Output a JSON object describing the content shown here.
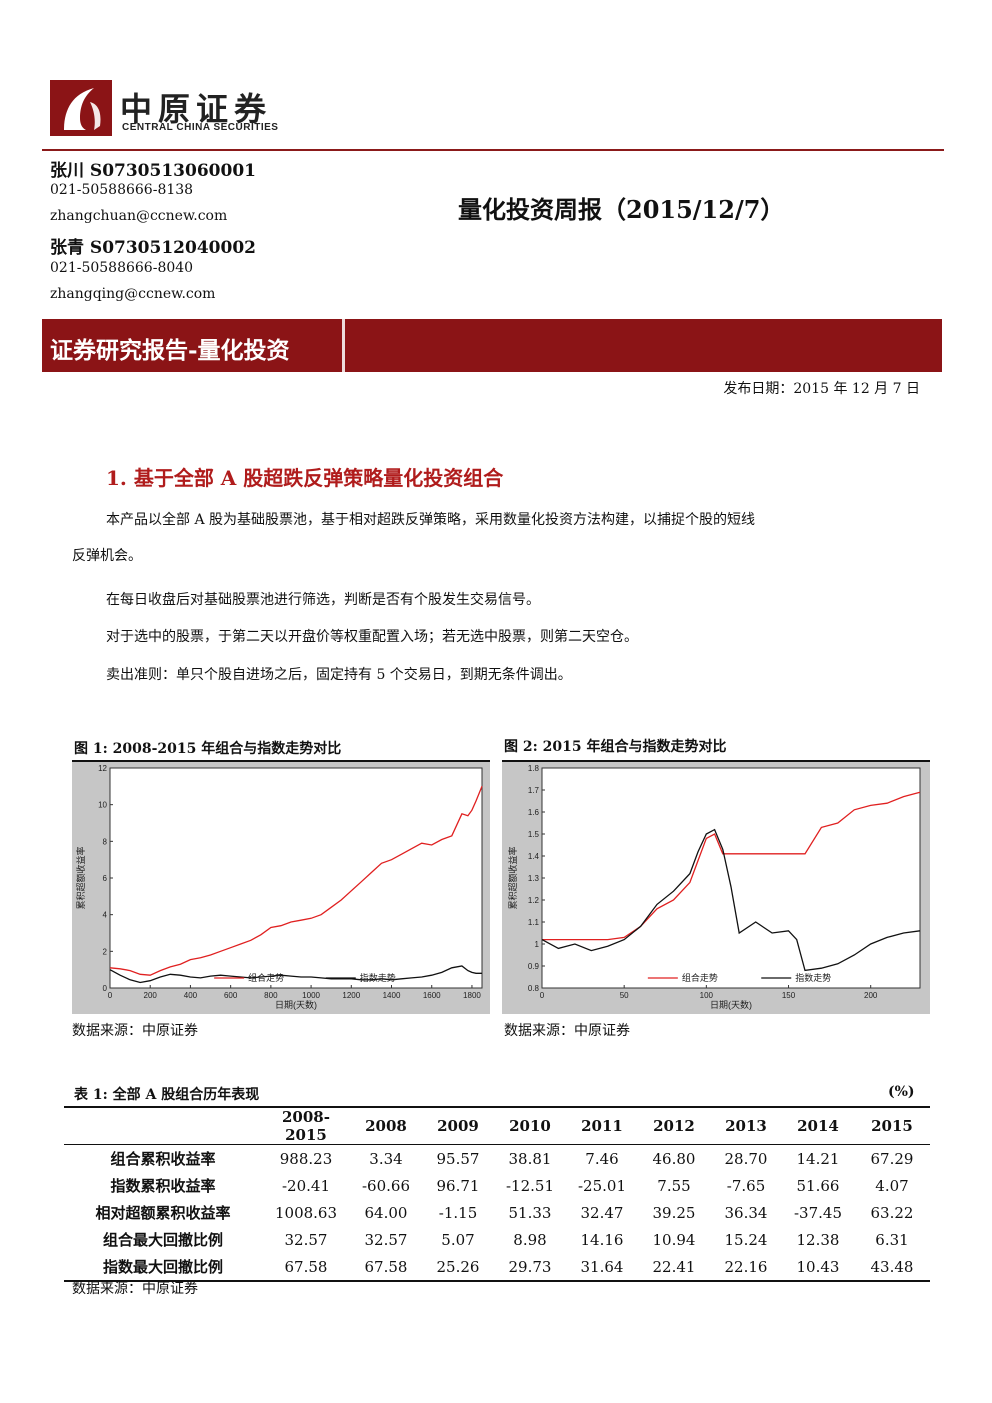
{
  "header": {
    "logo_cn": "中原证券",
    "logo_en": "CENTRAL CHINA SECURITIES",
    "authors": [
      {
        "name": "张川",
        "license": "S0730513060001",
        "phone": "021-50588666-8138",
        "email": "zhangchuan@ccnew.com"
      },
      {
        "name": "张青",
        "license": "S0730512040002",
        "phone": "021-50588666-8040",
        "email": "zhangqing@ccnew.com"
      }
    ],
    "report_title": "量化投资周报（2015/12/7）",
    "banner": "证券研究报告-量化投资",
    "publish_date": "发布日期：2015 年 12 月 7 日"
  },
  "section1": {
    "title": "1. 基于全部 A 股超跌反弹策略量化投资组合",
    "p1_line1": "本产品以全部 A 股为基础股票池，基于相对超跌反弹策略，采用数量化投资方法构建，以捕捉个股的短线",
    "p1_line2": "反弹机会。",
    "p2": "在每日收盘后对基础股票池进行筛选，判断是否有个股发生交易信号。",
    "p3": "对于选中的股票，于第二天以开盘价等权重配置入场；若无选中股票，则第二天空仓。",
    "p4": "卖出准则：单只个股自进场之后，固定持有 5 个交易日，到期无条件调出。"
  },
  "figures": {
    "fig1_title": "图 1: 2008-2015 年组合与指数走势对比",
    "fig2_title": "图 2: 2015 年组合与指数走势对比",
    "source": "数据来源：中原证券"
  },
  "chart_data": [
    {
      "type": "line",
      "xlabel": "日期(天数)",
      "ylabel": "累积超额收益率",
      "xlim": [
        0,
        1850
      ],
      "ylim": [
        0,
        12
      ],
      "xticks": [
        "0",
        "200",
        "400",
        "600",
        "800",
        "1000",
        "1200",
        "1400",
        "1600",
        "1800"
      ],
      "yticks": [
        "0",
        "2",
        "4",
        "6",
        "8",
        "10",
        "12"
      ],
      "colors": {
        "portfolio": "#e02020",
        "index": "#111111"
      },
      "series": [
        {
          "name": "组合走势",
          "x": [
            0,
            50,
            100,
            150,
            200,
            250,
            300,
            350,
            400,
            450,
            500,
            550,
            600,
            650,
            700,
            750,
            800,
            850,
            900,
            950,
            1000,
            1050,
            1100,
            1150,
            1200,
            1250,
            1300,
            1350,
            1400,
            1450,
            1500,
            1550,
            1600,
            1650,
            1700,
            1750,
            1780,
            1800,
            1820,
            1850
          ],
          "values": [
            1.1,
            1.05,
            0.95,
            0.75,
            0.7,
            0.95,
            1.15,
            1.3,
            1.55,
            1.65,
            1.8,
            2.0,
            2.2,
            2.4,
            2.6,
            2.9,
            3.3,
            3.4,
            3.6,
            3.7,
            3.8,
            4.0,
            4.4,
            4.8,
            5.3,
            5.8,
            6.3,
            6.8,
            7.0,
            7.3,
            7.6,
            7.9,
            7.8,
            8.1,
            8.3,
            9.5,
            9.4,
            9.7,
            10.2,
            11.0
          ]
        },
        {
          "name": "指数走势",
          "x": [
            0,
            50,
            100,
            150,
            200,
            250,
            300,
            350,
            400,
            450,
            500,
            550,
            600,
            650,
            700,
            750,
            800,
            850,
            900,
            950,
            1000,
            1050,
            1100,
            1150,
            1200,
            1250,
            1300,
            1350,
            1400,
            1450,
            1500,
            1550,
            1600,
            1650,
            1700,
            1750,
            1780,
            1800,
            1820,
            1850
          ],
          "values": [
            1.0,
            0.7,
            0.45,
            0.3,
            0.4,
            0.6,
            0.75,
            0.7,
            0.6,
            0.55,
            0.65,
            0.7,
            0.65,
            0.6,
            0.55,
            0.6,
            0.65,
            0.7,
            0.65,
            0.6,
            0.6,
            0.55,
            0.5,
            0.5,
            0.5,
            0.45,
            0.45,
            0.5,
            0.45,
            0.5,
            0.55,
            0.6,
            0.7,
            0.85,
            1.1,
            1.2,
            0.95,
            0.85,
            0.8,
            0.8
          ]
        }
      ]
    },
    {
      "type": "line",
      "xlabel": "日期(天数)",
      "ylabel": "累积超额收益率",
      "xlim": [
        0,
        230
      ],
      "ylim": [
        0.8,
        1.8
      ],
      "xticks": [
        "0",
        "50",
        "100",
        "150",
        "200"
      ],
      "yticks": [
        "0.8",
        "0.9",
        "1",
        "1.1",
        "1.2",
        "1.3",
        "1.4",
        "1.5",
        "1.6",
        "1.7",
        "1.8"
      ],
      "colors": {
        "portfolio": "#e02020",
        "index": "#111111"
      },
      "series": [
        {
          "name": "组合走势",
          "x": [
            0,
            10,
            20,
            30,
            40,
            50,
            60,
            70,
            80,
            90,
            95,
            100,
            105,
            110,
            120,
            130,
            140,
            150,
            160,
            170,
            180,
            190,
            200,
            210,
            220,
            230
          ],
          "values": [
            1.02,
            1.02,
            1.02,
            1.02,
            1.02,
            1.03,
            1.08,
            1.16,
            1.2,
            1.28,
            1.38,
            1.48,
            1.5,
            1.41,
            1.41,
            1.41,
            1.41,
            1.41,
            1.41,
            1.53,
            1.55,
            1.61,
            1.63,
            1.64,
            1.67,
            1.69
          ]
        },
        {
          "name": "指数走势",
          "x": [
            0,
            10,
            20,
            30,
            40,
            50,
            60,
            70,
            80,
            90,
            95,
            100,
            105,
            110,
            115,
            120,
            130,
            140,
            150,
            155,
            160,
            170,
            180,
            190,
            200,
            210,
            220,
            230
          ],
          "values": [
            1.02,
            0.98,
            1.0,
            0.97,
            0.99,
            1.02,
            1.08,
            1.18,
            1.24,
            1.32,
            1.42,
            1.5,
            1.52,
            1.43,
            1.26,
            1.05,
            1.1,
            1.05,
            1.06,
            1.02,
            0.88,
            0.89,
            0.91,
            0.95,
            1.0,
            1.03,
            1.05,
            1.06
          ]
        }
      ]
    }
  ],
  "table1": {
    "title": "表 1: 全部 A 股组合历年表现",
    "unit": "(%)",
    "columns": [
      "",
      "2008-2015",
      "2008",
      "2009",
      "2010",
      "2011",
      "2012",
      "2013",
      "2014",
      "2015"
    ],
    "rows": [
      {
        "label": "组合累积收益率",
        "values": [
          "988.23",
          "3.34",
          "95.57",
          "38.81",
          "7.46",
          "46.80",
          "28.70",
          "14.21",
          "67.29"
        ]
      },
      {
        "label": "指数累积收益率",
        "values": [
          "-20.41",
          "-60.66",
          "96.71",
          "-12.51",
          "-25.01",
          "7.55",
          "-7.65",
          "51.66",
          "4.07"
        ]
      },
      {
        "label": "相对超额累积收益率",
        "values": [
          "1008.63",
          "64.00",
          "-1.15",
          "51.33",
          "32.47",
          "39.25",
          "36.34",
          "-37.45",
          "63.22"
        ]
      },
      {
        "label": "组合最大回撤比例",
        "values": [
          "32.57",
          "32.57",
          "5.07",
          "8.98",
          "14.16",
          "10.94",
          "15.24",
          "12.38",
          "6.31"
        ]
      },
      {
        "label": "指数最大回撤比例",
        "values": [
          "67.58",
          "67.58",
          "25.26",
          "29.73",
          "31.64",
          "22.41",
          "22.16",
          "10.43",
          "43.48"
        ]
      }
    ],
    "source": "数据来源：中原证券"
  }
}
